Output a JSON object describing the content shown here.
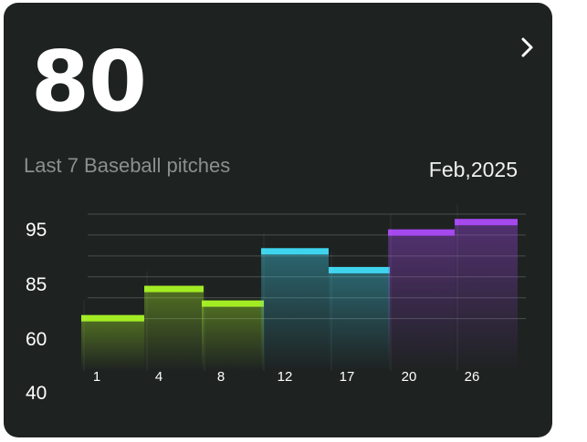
{
  "card": {
    "value": "80",
    "subtitle": "Last 7 Baseball pitches",
    "date": "Feb,2025",
    "nav_icon": "chevron-right-icon"
  },
  "chart_data": {
    "type": "bar",
    "categories": [
      "1",
      "4",
      "8",
      "12",
      "17",
      "20",
      "26"
    ],
    "values": [
      65,
      79,
      72,
      97,
      88,
      106,
      111
    ],
    "y_tick_labels": [
      "95",
      "85",
      "60",
      "40"
    ],
    "ylim": [
      40,
      115
    ],
    "grid": true,
    "colors": [
      "#a3ec24",
      "#a3ec24",
      "#a3ec24",
      "#3fd4ee",
      "#3fd4ee",
      "#a548ee",
      "#a548ee"
    ],
    "title": "",
    "xlabel": "",
    "ylabel": ""
  }
}
